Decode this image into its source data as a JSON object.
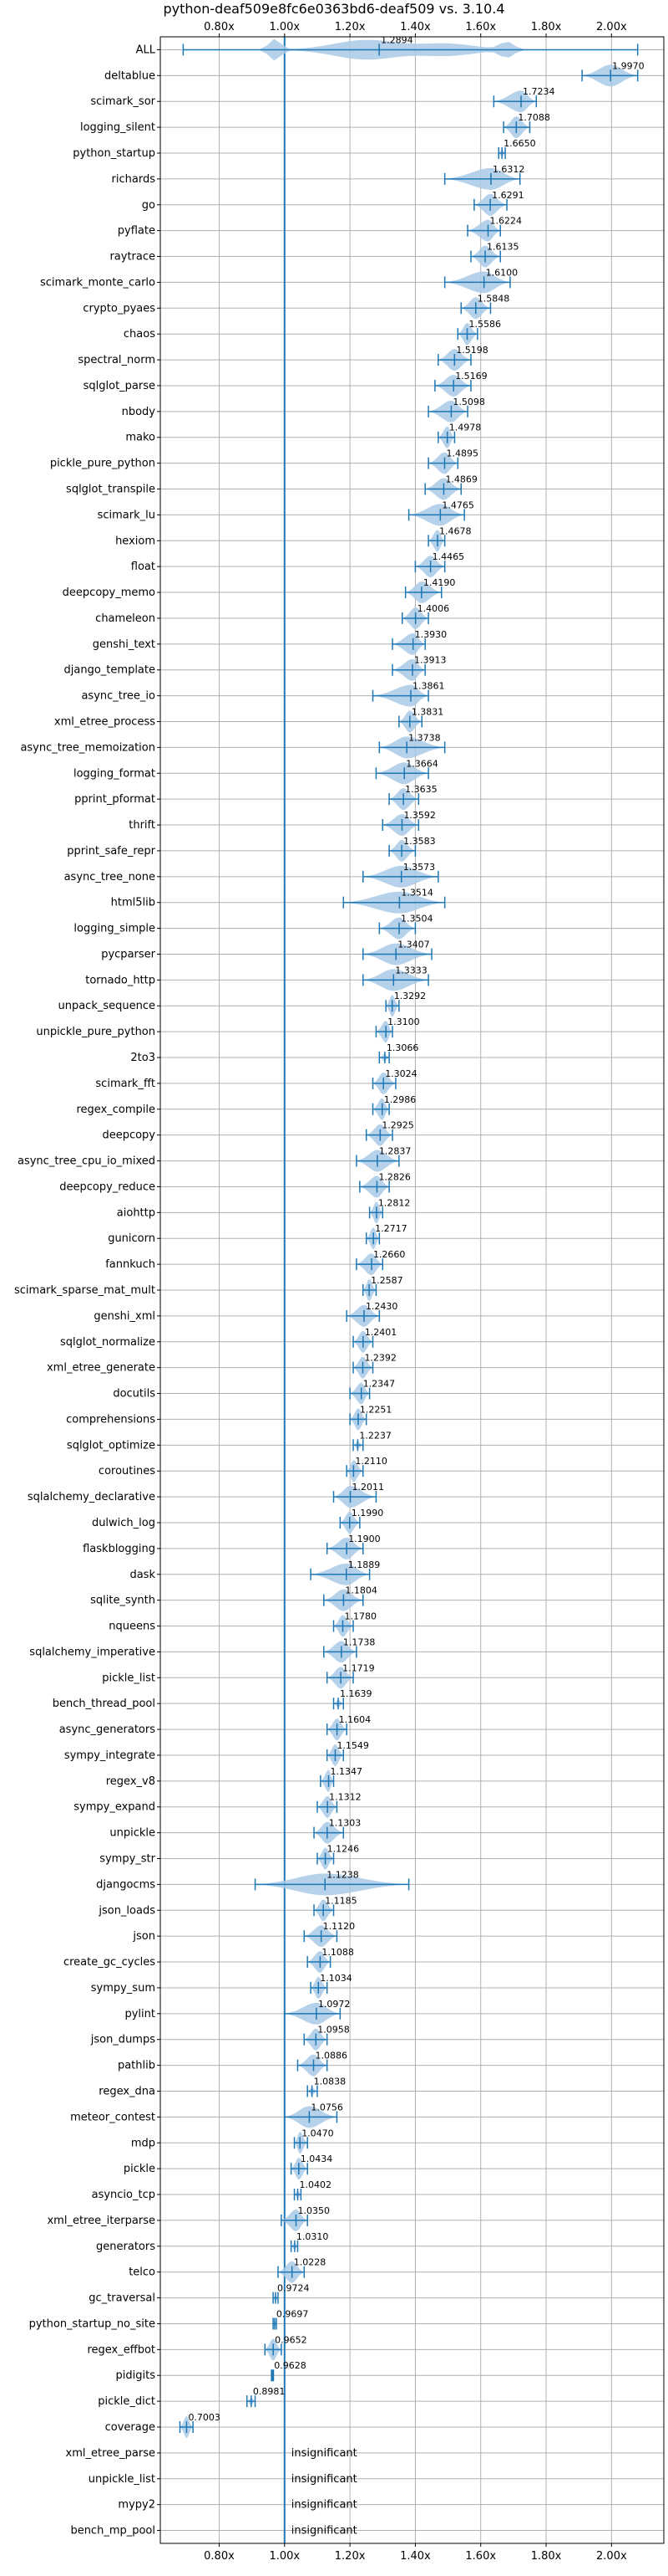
{
  "chart_data": {
    "type": "violin",
    "title": "python-deaf509e8fc6e0363bd6-deaf509 vs. 3.10.4",
    "xlim": [
      0.62,
      2.16
    ],
    "x_ticks": [
      0.8,
      1.0,
      1.2,
      1.4,
      1.6,
      1.8,
      2.0
    ],
    "x_tick_labels": [
      "0.80x",
      "1.00x",
      "1.20x",
      "1.40x",
      "1.60x",
      "1.80x",
      "2.00x"
    ],
    "reference_line": 1.0,
    "grid": true,
    "insignificant_label": "insignificant",
    "benchmarks": [
      {
        "name": "ALL",
        "value": 1.2894,
        "label": "1.2894",
        "min": 0.69,
        "max": 2.08
      },
      {
        "name": "deltablue",
        "value": 1.997,
        "label": "1.9970",
        "min": 1.91,
        "max": 2.08
      },
      {
        "name": "scimark_sor",
        "value": 1.7234,
        "label": "1.7234",
        "min": 1.64,
        "max": 1.77
      },
      {
        "name": "logging_silent",
        "value": 1.7088,
        "label": "1.7088",
        "min": 1.67,
        "max": 1.75
      },
      {
        "name": "python_startup",
        "value": 1.665,
        "label": "1.6650",
        "min": 1.655,
        "max": 1.675
      },
      {
        "name": "richards",
        "value": 1.6312,
        "label": "1.6312",
        "min": 1.49,
        "max": 1.72
      },
      {
        "name": "go",
        "value": 1.6291,
        "label": "1.6291",
        "min": 1.58,
        "max": 1.68
      },
      {
        "name": "pyflate",
        "value": 1.6224,
        "label": "1.6224",
        "min": 1.56,
        "max": 1.66
      },
      {
        "name": "raytrace",
        "value": 1.6135,
        "label": "1.6135",
        "min": 1.57,
        "max": 1.66
      },
      {
        "name": "scimark_monte_carlo",
        "value": 1.61,
        "label": "1.6100",
        "min": 1.49,
        "max": 1.69
      },
      {
        "name": "crypto_pyaes",
        "value": 1.5848,
        "label": "1.5848",
        "min": 1.54,
        "max": 1.63
      },
      {
        "name": "chaos",
        "value": 1.5586,
        "label": "1.5586",
        "min": 1.53,
        "max": 1.59
      },
      {
        "name": "spectral_norm",
        "value": 1.5198,
        "label": "1.5198",
        "min": 1.47,
        "max": 1.57
      },
      {
        "name": "sqlglot_parse",
        "value": 1.5169,
        "label": "1.5169",
        "min": 1.46,
        "max": 1.57
      },
      {
        "name": "nbody",
        "value": 1.5098,
        "label": "1.5098",
        "min": 1.44,
        "max": 1.56
      },
      {
        "name": "mako",
        "value": 1.4978,
        "label": "1.4978",
        "min": 1.47,
        "max": 1.52
      },
      {
        "name": "pickle_pure_python",
        "value": 1.4895,
        "label": "1.4895",
        "min": 1.44,
        "max": 1.53
      },
      {
        "name": "sqlglot_transpile",
        "value": 1.4869,
        "label": "1.4869",
        "min": 1.43,
        "max": 1.54
      },
      {
        "name": "scimark_lu",
        "value": 1.4765,
        "label": "1.4765",
        "min": 1.38,
        "max": 1.55
      },
      {
        "name": "hexiom",
        "value": 1.4678,
        "label": "1.4678",
        "min": 1.44,
        "max": 1.49
      },
      {
        "name": "float",
        "value": 1.4465,
        "label": "1.4465",
        "min": 1.4,
        "max": 1.49
      },
      {
        "name": "deepcopy_memo",
        "value": 1.419,
        "label": "1.4190",
        "min": 1.37,
        "max": 1.48
      },
      {
        "name": "chameleon",
        "value": 1.4006,
        "label": "1.4006",
        "min": 1.36,
        "max": 1.44
      },
      {
        "name": "genshi_text",
        "value": 1.393,
        "label": "1.3930",
        "min": 1.33,
        "max": 1.43
      },
      {
        "name": "django_template",
        "value": 1.3913,
        "label": "1.3913",
        "min": 1.33,
        "max": 1.43
      },
      {
        "name": "async_tree_io",
        "value": 1.3861,
        "label": "1.3861",
        "min": 1.27,
        "max": 1.44
      },
      {
        "name": "xml_etree_process",
        "value": 1.3831,
        "label": "1.3831",
        "min": 1.35,
        "max": 1.42
      },
      {
        "name": "async_tree_memoization",
        "value": 1.3738,
        "label": "1.3738",
        "min": 1.29,
        "max": 1.49
      },
      {
        "name": "logging_format",
        "value": 1.3664,
        "label": "1.3664",
        "min": 1.28,
        "max": 1.44
      },
      {
        "name": "pprint_pformat",
        "value": 1.3635,
        "label": "1.3635",
        "min": 1.32,
        "max": 1.41
      },
      {
        "name": "thrift",
        "value": 1.3592,
        "label": "1.3592",
        "min": 1.3,
        "max": 1.41
      },
      {
        "name": "pprint_safe_repr",
        "value": 1.3583,
        "label": "1.3583",
        "min": 1.32,
        "max": 1.4
      },
      {
        "name": "async_tree_none",
        "value": 1.3573,
        "label": "1.3573",
        "min": 1.24,
        "max": 1.47
      },
      {
        "name": "html5lib",
        "value": 1.3514,
        "label": "1.3514",
        "min": 1.18,
        "max": 1.49
      },
      {
        "name": "logging_simple",
        "value": 1.3504,
        "label": "1.3504",
        "min": 1.29,
        "max": 1.4
      },
      {
        "name": "pycparser",
        "value": 1.3407,
        "label": "1.3407",
        "min": 1.24,
        "max": 1.45
      },
      {
        "name": "tornado_http",
        "value": 1.3333,
        "label": "1.3333",
        "min": 1.24,
        "max": 1.44
      },
      {
        "name": "unpack_sequence",
        "value": 1.3292,
        "label": "1.3292",
        "min": 1.31,
        "max": 1.35
      },
      {
        "name": "unpickle_pure_python",
        "value": 1.31,
        "label": "1.3100",
        "min": 1.28,
        "max": 1.33
      },
      {
        "name": "2to3",
        "value": 1.3066,
        "label": "1.3066",
        "min": 1.29,
        "max": 1.32
      },
      {
        "name": "scimark_fft",
        "value": 1.3024,
        "label": "1.3024",
        "min": 1.27,
        "max": 1.34
      },
      {
        "name": "regex_compile",
        "value": 1.2986,
        "label": "1.2986",
        "min": 1.27,
        "max": 1.32
      },
      {
        "name": "deepcopy",
        "value": 1.2925,
        "label": "1.2925",
        "min": 1.25,
        "max": 1.33
      },
      {
        "name": "async_tree_cpu_io_mixed",
        "value": 1.2837,
        "label": "1.2837",
        "min": 1.22,
        "max": 1.35
      },
      {
        "name": "deepcopy_reduce",
        "value": 1.2826,
        "label": "1.2826",
        "min": 1.23,
        "max": 1.32
      },
      {
        "name": "aiohttp",
        "value": 1.2812,
        "label": "1.2812",
        "min": 1.26,
        "max": 1.3
      },
      {
        "name": "gunicorn",
        "value": 1.2717,
        "label": "1.2717",
        "min": 1.25,
        "max": 1.29
      },
      {
        "name": "fannkuch",
        "value": 1.266,
        "label": "1.2660",
        "min": 1.22,
        "max": 1.3
      },
      {
        "name": "scimark_sparse_mat_mult",
        "value": 1.2587,
        "label": "1.2587",
        "min": 1.24,
        "max": 1.28
      },
      {
        "name": "genshi_xml",
        "value": 1.243,
        "label": "1.2430",
        "min": 1.19,
        "max": 1.29
      },
      {
        "name": "sqlglot_normalize",
        "value": 1.2401,
        "label": "1.2401",
        "min": 1.21,
        "max": 1.27
      },
      {
        "name": "xml_etree_generate",
        "value": 1.2392,
        "label": "1.2392",
        "min": 1.21,
        "max": 1.27
      },
      {
        "name": "docutils",
        "value": 1.2347,
        "label": "1.2347",
        "min": 1.2,
        "max": 1.26
      },
      {
        "name": "comprehensions",
        "value": 1.2251,
        "label": "1.2251",
        "min": 1.2,
        "max": 1.25
      },
      {
        "name": "sqlglot_optimize",
        "value": 1.2237,
        "label": "1.2237",
        "min": 1.21,
        "max": 1.24
      },
      {
        "name": "coroutines",
        "value": 1.211,
        "label": "1.2110",
        "min": 1.19,
        "max": 1.24
      },
      {
        "name": "sqlalchemy_declarative",
        "value": 1.2011,
        "label": "1.2011",
        "min": 1.15,
        "max": 1.28
      },
      {
        "name": "dulwich_log",
        "value": 1.199,
        "label": "1.1990",
        "min": 1.17,
        "max": 1.23
      },
      {
        "name": "flaskblogging",
        "value": 1.19,
        "label": "1.1900",
        "min": 1.13,
        "max": 1.24
      },
      {
        "name": "dask",
        "value": 1.1889,
        "label": "1.1889",
        "min": 1.08,
        "max": 1.26
      },
      {
        "name": "sqlite_synth",
        "value": 1.1804,
        "label": "1.1804",
        "min": 1.12,
        "max": 1.24
      },
      {
        "name": "nqueens",
        "value": 1.178,
        "label": "1.1780",
        "min": 1.15,
        "max": 1.21
      },
      {
        "name": "sqlalchemy_imperative",
        "value": 1.1738,
        "label": "1.1738",
        "min": 1.12,
        "max": 1.22
      },
      {
        "name": "pickle_list",
        "value": 1.1719,
        "label": "1.1719",
        "min": 1.13,
        "max": 1.21
      },
      {
        "name": "bench_thread_pool",
        "value": 1.1639,
        "label": "1.1639",
        "min": 1.15,
        "max": 1.18
      },
      {
        "name": "async_generators",
        "value": 1.1604,
        "label": "1.1604",
        "min": 1.13,
        "max": 1.19
      },
      {
        "name": "sympy_integrate",
        "value": 1.1549,
        "label": "1.1549",
        "min": 1.13,
        "max": 1.18
      },
      {
        "name": "regex_v8",
        "value": 1.1347,
        "label": "1.1347",
        "min": 1.11,
        "max": 1.15
      },
      {
        "name": "sympy_expand",
        "value": 1.1312,
        "label": "1.1312",
        "min": 1.1,
        "max": 1.16
      },
      {
        "name": "unpickle",
        "value": 1.1303,
        "label": "1.1303",
        "min": 1.09,
        "max": 1.18
      },
      {
        "name": "sympy_str",
        "value": 1.1246,
        "label": "1.1246",
        "min": 1.1,
        "max": 1.15
      },
      {
        "name": "djangocms",
        "value": 1.1238,
        "label": "1.1238",
        "min": 0.91,
        "max": 1.38
      },
      {
        "name": "json_loads",
        "value": 1.1185,
        "label": "1.1185",
        "min": 1.09,
        "max": 1.15
      },
      {
        "name": "json",
        "value": 1.112,
        "label": "1.1120",
        "min": 1.06,
        "max": 1.16
      },
      {
        "name": "create_gc_cycles",
        "value": 1.1088,
        "label": "1.1088",
        "min": 1.07,
        "max": 1.14
      },
      {
        "name": "sympy_sum",
        "value": 1.1034,
        "label": "1.1034",
        "min": 1.08,
        "max": 1.13
      },
      {
        "name": "pylint",
        "value": 1.0972,
        "label": "1.0972",
        "min": 1.0,
        "max": 1.17
      },
      {
        "name": "json_dumps",
        "value": 1.0958,
        "label": "1.0958",
        "min": 1.06,
        "max": 1.13
      },
      {
        "name": "pathlib",
        "value": 1.0886,
        "label": "1.0886",
        "min": 1.04,
        "max": 1.13
      },
      {
        "name": "regex_dna",
        "value": 1.0838,
        "label": "1.0838",
        "min": 1.07,
        "max": 1.1
      },
      {
        "name": "meteor_contest",
        "value": 1.0756,
        "label": "1.0756",
        "min": 1.0,
        "max": 1.16
      },
      {
        "name": "mdp",
        "value": 1.047,
        "label": "1.0470",
        "min": 1.03,
        "max": 1.07
      },
      {
        "name": "pickle",
        "value": 1.0434,
        "label": "1.0434",
        "min": 1.02,
        "max": 1.07
      },
      {
        "name": "asyncio_tcp",
        "value": 1.0402,
        "label": "1.0402",
        "min": 1.03,
        "max": 1.05
      },
      {
        "name": "xml_etree_iterparse",
        "value": 1.035,
        "label": "1.0350",
        "min": 0.99,
        "max": 1.07
      },
      {
        "name": "generators",
        "value": 1.031,
        "label": "1.0310",
        "min": 1.02,
        "max": 1.04
      },
      {
        "name": "telco",
        "value": 1.0228,
        "label": "1.0228",
        "min": 0.98,
        "max": 1.06
      },
      {
        "name": "gc_traversal",
        "value": 0.9724,
        "label": "0.9724",
        "min": 0.965,
        "max": 0.98
      },
      {
        "name": "python_startup_no_site",
        "value": 0.9697,
        "label": "0.9697",
        "min": 0.965,
        "max": 0.975
      },
      {
        "name": "regex_effbot",
        "value": 0.9652,
        "label": "0.9652",
        "min": 0.94,
        "max": 0.99
      },
      {
        "name": "pidigits",
        "value": 0.9628,
        "label": "0.9628",
        "min": 0.96,
        "max": 0.966
      },
      {
        "name": "pickle_dict",
        "value": 0.8981,
        "label": "0.8981",
        "min": 0.885,
        "max": 0.91
      },
      {
        "name": "coverage",
        "value": 0.7003,
        "label": "0.7003",
        "min": 0.68,
        "max": 0.72
      },
      {
        "name": "xml_etree_parse",
        "value": null,
        "label": "",
        "insignificant": true
      },
      {
        "name": "unpickle_list",
        "value": null,
        "label": "",
        "insignificant": true
      },
      {
        "name": "mypy2",
        "value": null,
        "label": "",
        "insignificant": true
      },
      {
        "name": "bench_mp_pool",
        "value": null,
        "label": "",
        "insignificant": true
      }
    ],
    "colors": {
      "violin_fill": "#a9c9e6",
      "line": "#1f77b4",
      "reference": "#1f77b4",
      "grid": "#b0b0b0",
      "axes": "#000000"
    }
  }
}
